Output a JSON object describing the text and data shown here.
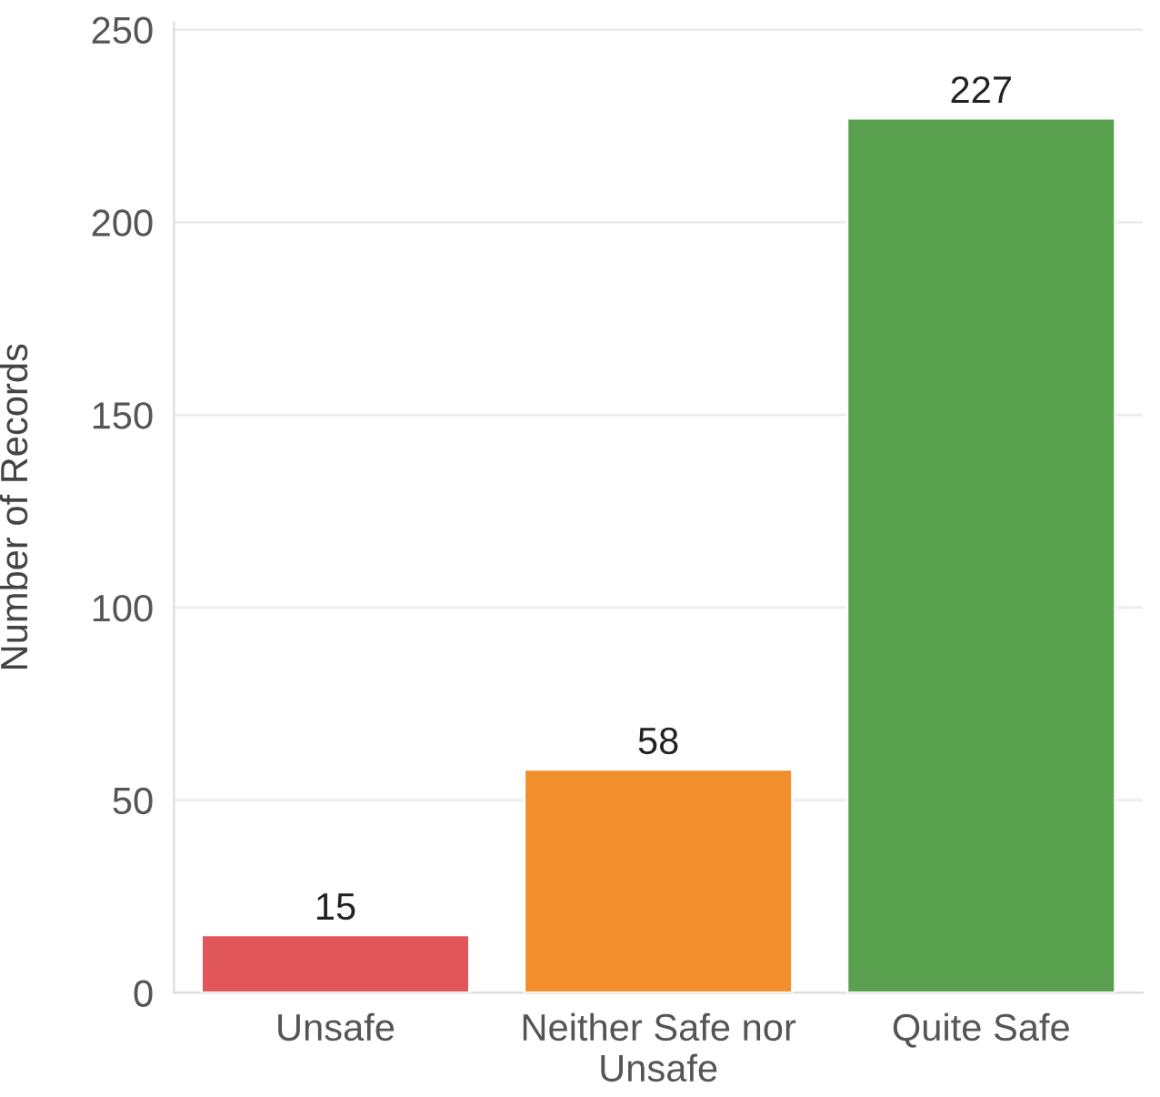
{
  "chart_data": {
    "type": "bar",
    "ylabel": "Number of Records",
    "categories": [
      "Unsafe",
      "Neither Safe nor Unsafe",
      "Quite Safe"
    ],
    "values": [
      15,
      58,
      227
    ],
    "colors": [
      "#e15759",
      "#f28e2b",
      "#59a14f"
    ],
    "ylim": [
      0,
      252
    ],
    "yticks": [
      0,
      50,
      100,
      150,
      200,
      250
    ],
    "grid": "y",
    "data_labels": true
  }
}
